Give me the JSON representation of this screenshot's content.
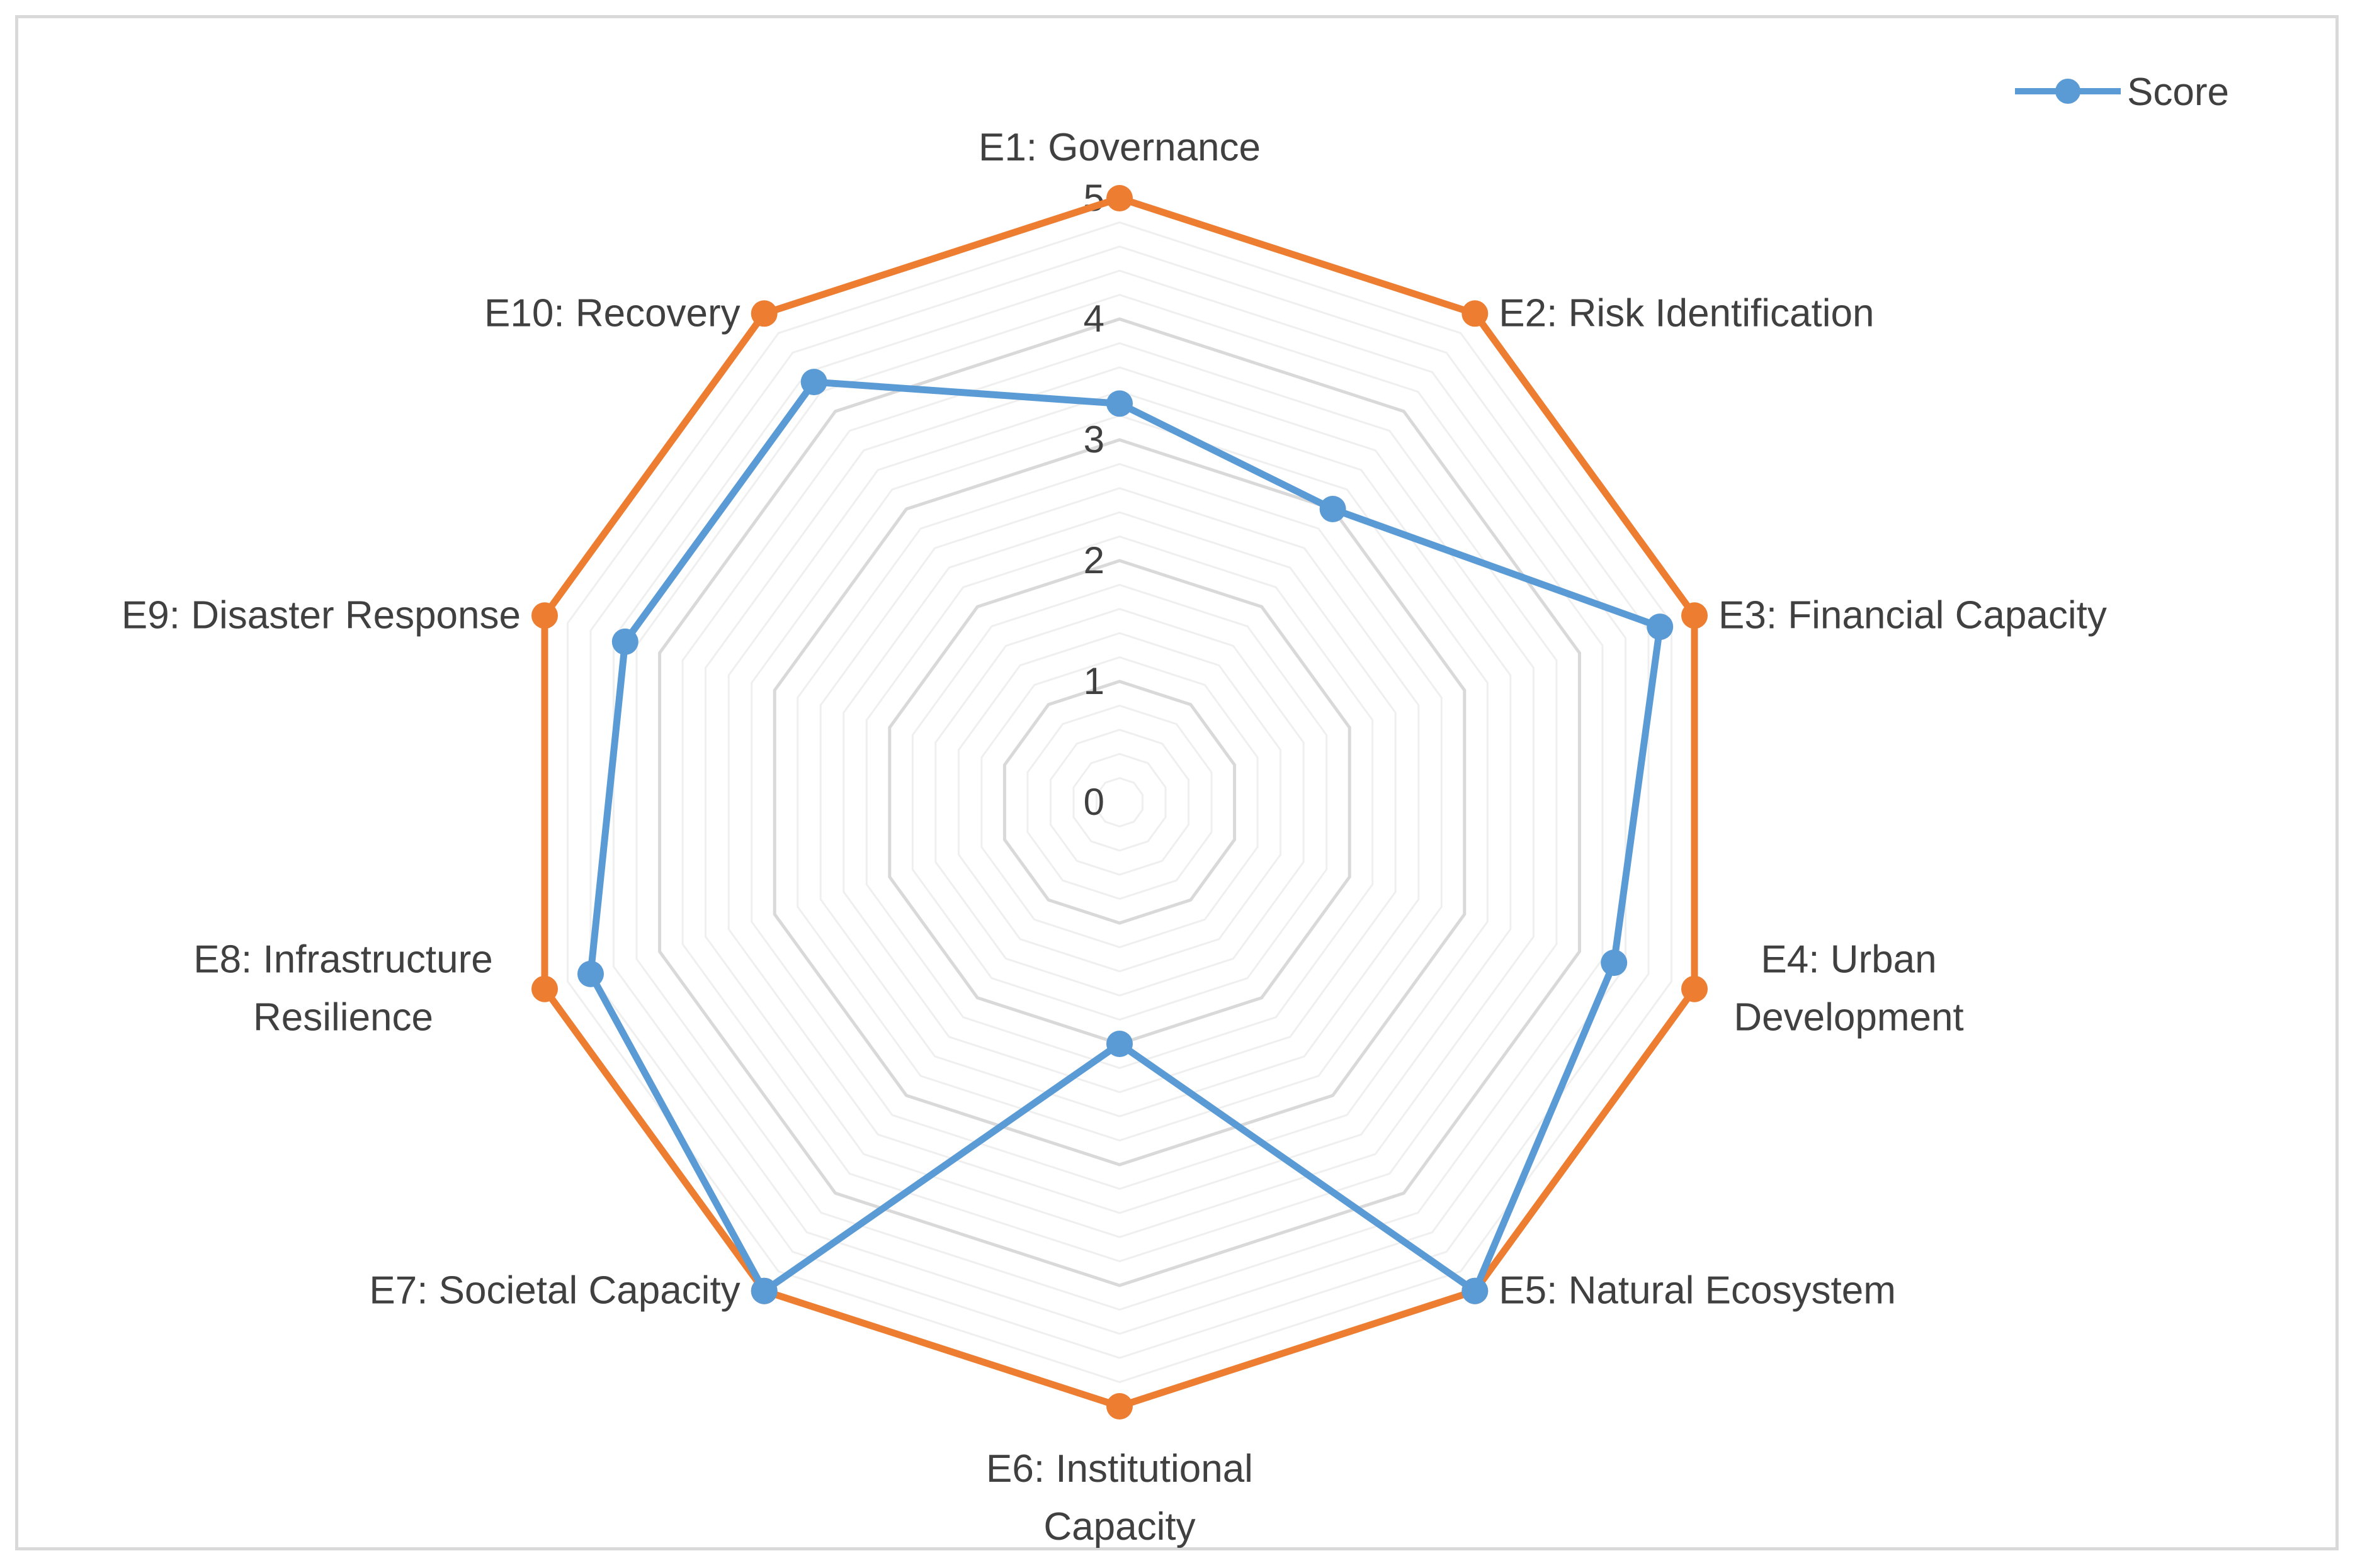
{
  "chart_data": {
    "type": "radar",
    "categories": [
      "E1: Governance",
      "E2: Risk Identification",
      "E3: Financial Capacity",
      "E4: Urban Development",
      "E5: Natural Ecosystem",
      "E6: Institutional Capacity",
      "E7: Societal Capacity",
      "E8: Infrastructure Resilience",
      "E9: Disaster Response",
      "E10: Recovery"
    ],
    "category_lines": [
      [
        "E1: Governance"
      ],
      [
        "E2: Risk Identification"
      ],
      [
        "E3: Financial Capacity"
      ],
      [
        "E4: Urban",
        "Development"
      ],
      [
        "E5: Natural Ecosystem"
      ],
      [
        "E6: Institutional",
        "Capacity"
      ],
      [
        "E7: Societal Capacity"
      ],
      [
        "E8: Infrastructure",
        "Resilience"
      ],
      [
        "E9: Disaster Response"
      ],
      [
        "E10: Recovery"
      ]
    ],
    "series": [
      {
        "name": "Score",
        "values": [
          3.3,
          3.0,
          4.7,
          4.3,
          5.0,
          2.0,
          5.0,
          4.6,
          4.3,
          4.3
        ],
        "color": "#5b9bd5",
        "in_legend": true
      },
      {
        "name": "",
        "values": [
          5,
          5,
          5,
          5,
          5,
          5,
          5,
          5,
          5,
          5
        ],
        "color": "#ed7d31",
        "in_legend": false
      }
    ],
    "r_ticks": [
      "0",
      "1",
      "2",
      "3",
      "4",
      "5"
    ],
    "r_range": [
      0,
      5
    ],
    "minor_grid_step": 0.2,
    "grid": true,
    "legend_position": "top-right",
    "colors": {
      "grid_major": "#d9d9d9",
      "grid_minor": "#efefef",
      "text": "#404040",
      "border": "#d9d9d9"
    }
  }
}
